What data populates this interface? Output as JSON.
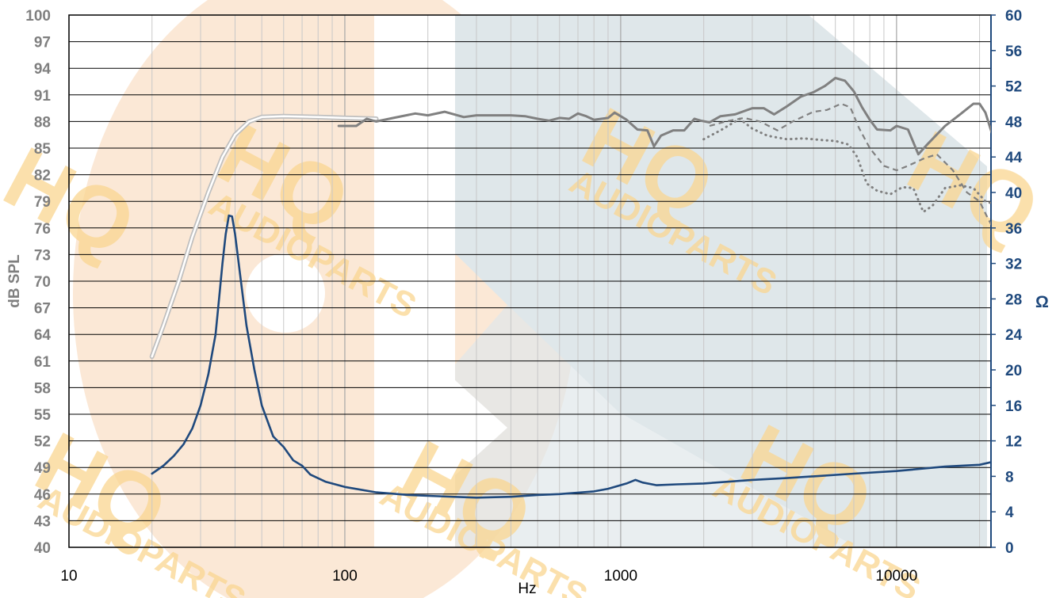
{
  "chart_data": {
    "type": "line",
    "xlabel": "Hz",
    "ylabel_left": "dB SPL",
    "ylabel_right": "Ω",
    "x_scale": "log",
    "xlim": [
      10,
      22000
    ],
    "ylim_left": [
      40,
      100
    ],
    "ylim_right": [
      0,
      60
    ],
    "x_ticks": [
      10,
      100,
      1000,
      10000
    ],
    "y_ticks_left": [
      40,
      43,
      46,
      49,
      52,
      55,
      58,
      61,
      64,
      67,
      70,
      73,
      76,
      79,
      82,
      85,
      88,
      91,
      94,
      97,
      100
    ],
    "y_ticks_right": [
      0,
      4,
      8,
      12,
      16,
      20,
      24,
      28,
      32,
      36,
      40,
      44,
      48,
      52,
      56,
      60
    ],
    "grid": true,
    "watermark": {
      "brand": "HQ",
      "text": "AUDIOPARTS"
    },
    "colors": {
      "spl": "#808080",
      "spl_lowfreq": "#bfbfbf",
      "impedance": "#1f497d",
      "left_axis_text": "#7f7f7f",
      "right_axis": "#1f497d",
      "grid": "#000000",
      "minor_grid": "#c8c8c8",
      "watermark_gold": "#fad690",
      "watermark_slate": "#c3d3db"
    },
    "series": [
      {
        "axis": "left",
        "style": "double",
        "points": [
          [
            20,
            61.5
          ],
          [
            22,
            65
          ],
          [
            25,
            70
          ],
          [
            28,
            75
          ],
          [
            32,
            80
          ],
          [
            36,
            84
          ],
          [
            40,
            86.5
          ],
          [
            45,
            88
          ],
          [
            50,
            88.5
          ],
          [
            60,
            88.6
          ],
          [
            80,
            88.5
          ],
          [
            100,
            88.4
          ],
          [
            130,
            88.3
          ]
        ]
      },
      {
        "axis": "left",
        "style": "solid",
        "points": [
          [
            95,
            87.5
          ],
          [
            110,
            87.5
          ],
          [
            120,
            88.3
          ],
          [
            130,
            88
          ],
          [
            150,
            88.4
          ],
          [
            180,
            88.9
          ],
          [
            200,
            88.7
          ],
          [
            230,
            89.1
          ],
          [
            270,
            88.5
          ],
          [
            300,
            88.7
          ],
          [
            400,
            88.7
          ],
          [
            450,
            88.6
          ],
          [
            500,
            88.3
          ],
          [
            550,
            88.1
          ],
          [
            600,
            88.4
          ],
          [
            650,
            88.3
          ],
          [
            700,
            88.9
          ],
          [
            750,
            88.6
          ],
          [
            800,
            88.2
          ],
          [
            900,
            88.4
          ],
          [
            950,
            89.0
          ],
          [
            1000,
            88.6
          ],
          [
            1050,
            88.2
          ],
          [
            1150,
            87.1
          ],
          [
            1250,
            87.0
          ],
          [
            1320,
            85.2
          ],
          [
            1400,
            86.4
          ],
          [
            1550,
            87.0
          ],
          [
            1700,
            87.0
          ],
          [
            1850,
            88.3
          ],
          [
            1950,
            88.1
          ],
          [
            2100,
            87.9
          ],
          [
            2300,
            88.6
          ],
          [
            2600,
            88.8
          ],
          [
            3000,
            89.5
          ],
          [
            3300,
            89.5
          ],
          [
            3600,
            88.8
          ],
          [
            4000,
            89.7
          ],
          [
            4500,
            90.8
          ],
          [
            5000,
            91.3
          ],
          [
            5500,
            92.0
          ],
          [
            6000,
            92.9
          ],
          [
            6500,
            92.6
          ],
          [
            7000,
            91.4
          ],
          [
            7500,
            89.6
          ],
          [
            8000,
            88.2
          ],
          [
            8500,
            87.1
          ],
          [
            9500,
            87.0
          ],
          [
            10000,
            87.5
          ],
          [
            11000,
            87.1
          ],
          [
            12000,
            84.3
          ],
          [
            13000,
            85.5
          ],
          [
            15000,
            87.5
          ],
          [
            17000,
            88.8
          ],
          [
            19000,
            90.0
          ],
          [
            20000,
            90.0
          ],
          [
            21000,
            89.0
          ],
          [
            22000,
            87.0
          ],
          [
            22600,
            86.0
          ]
        ]
      },
      {
        "axis": "left",
        "style": "dashed",
        "points": [
          [
            2100,
            87.5
          ],
          [
            2400,
            88.0
          ],
          [
            2800,
            88.4
          ],
          [
            3200,
            88.0
          ],
          [
            3700,
            87.0
          ],
          [
            4200,
            88.0
          ],
          [
            5000,
            89.1
          ],
          [
            5600,
            89.3
          ],
          [
            6300,
            90.0
          ],
          [
            6800,
            89.6
          ],
          [
            7300,
            87.3
          ],
          [
            8000,
            85.0
          ],
          [
            9000,
            83.0
          ],
          [
            10000,
            82.5
          ],
          [
            11000,
            83.0
          ],
          [
            12500,
            83.8
          ],
          [
            14000,
            84.3
          ],
          [
            16000,
            82.5
          ],
          [
            18000,
            80.0
          ],
          [
            20000,
            79.0
          ],
          [
            21500,
            77.0
          ],
          [
            22600,
            75.8
          ]
        ]
      },
      {
        "axis": "left",
        "style": "dotted",
        "points": [
          [
            2000,
            86.0
          ],
          [
            2300,
            87.0
          ],
          [
            2700,
            88.3
          ],
          [
            3000,
            87.2
          ],
          [
            3400,
            86.4
          ],
          [
            4000,
            86.0
          ],
          [
            4600,
            86.1
          ],
          [
            5400,
            85.9
          ],
          [
            6000,
            85.8
          ],
          [
            6700,
            85.4
          ],
          [
            7200,
            84.0
          ],
          [
            7800,
            81.0
          ],
          [
            8500,
            80.2
          ],
          [
            9500,
            79.8
          ],
          [
            10500,
            80.6
          ],
          [
            11500,
            80.5
          ],
          [
            12500,
            77.8
          ],
          [
            13500,
            78.5
          ],
          [
            15000,
            80.5
          ],
          [
            17000,
            80.8
          ],
          [
            19000,
            80.5
          ],
          [
            21000,
            79.0
          ],
          [
            22000,
            78.8
          ]
        ]
      },
      {
        "axis": "right",
        "style": "solid",
        "name": "",
        "points": [
          [
            20,
            8.3
          ],
          [
            22,
            9.2
          ],
          [
            24,
            10.3
          ],
          [
            26,
            11.6
          ],
          [
            28,
            13.4
          ],
          [
            30,
            16.0
          ],
          [
            32,
            19.5
          ],
          [
            34,
            24.0
          ],
          [
            35,
            28.0
          ],
          [
            36,
            32.0
          ],
          [
            37,
            35.3
          ],
          [
            38,
            37.4
          ],
          [
            39,
            37.3
          ],
          [
            40,
            35.3
          ],
          [
            42,
            30.0
          ],
          [
            44,
            25.0
          ],
          [
            47,
            20.0
          ],
          [
            50,
            16.0
          ],
          [
            55,
            12.5
          ],
          [
            60,
            11.3
          ],
          [
            65,
            9.8
          ],
          [
            70,
            9.2
          ],
          [
            75,
            8.2
          ],
          [
            85,
            7.4
          ],
          [
            100,
            6.8
          ],
          [
            130,
            6.2
          ],
          [
            170,
            5.9
          ],
          [
            200,
            5.8
          ],
          [
            300,
            5.6
          ],
          [
            400,
            5.7
          ],
          [
            500,
            5.9
          ],
          [
            600,
            6.0
          ],
          [
            800,
            6.3
          ],
          [
            900,
            6.6
          ],
          [
            1050,
            7.2
          ],
          [
            1130,
            7.6
          ],
          [
            1200,
            7.3
          ],
          [
            1350,
            7.0
          ],
          [
            1600,
            7.1
          ],
          [
            2000,
            7.2
          ],
          [
            3000,
            7.6
          ],
          [
            4000,
            7.8
          ],
          [
            5000,
            8.0
          ],
          [
            7000,
            8.3
          ],
          [
            10000,
            8.6
          ],
          [
            15000,
            9.1
          ],
          [
            20000,
            9.3
          ],
          [
            22000,
            9.6
          ]
        ]
      }
    ]
  }
}
